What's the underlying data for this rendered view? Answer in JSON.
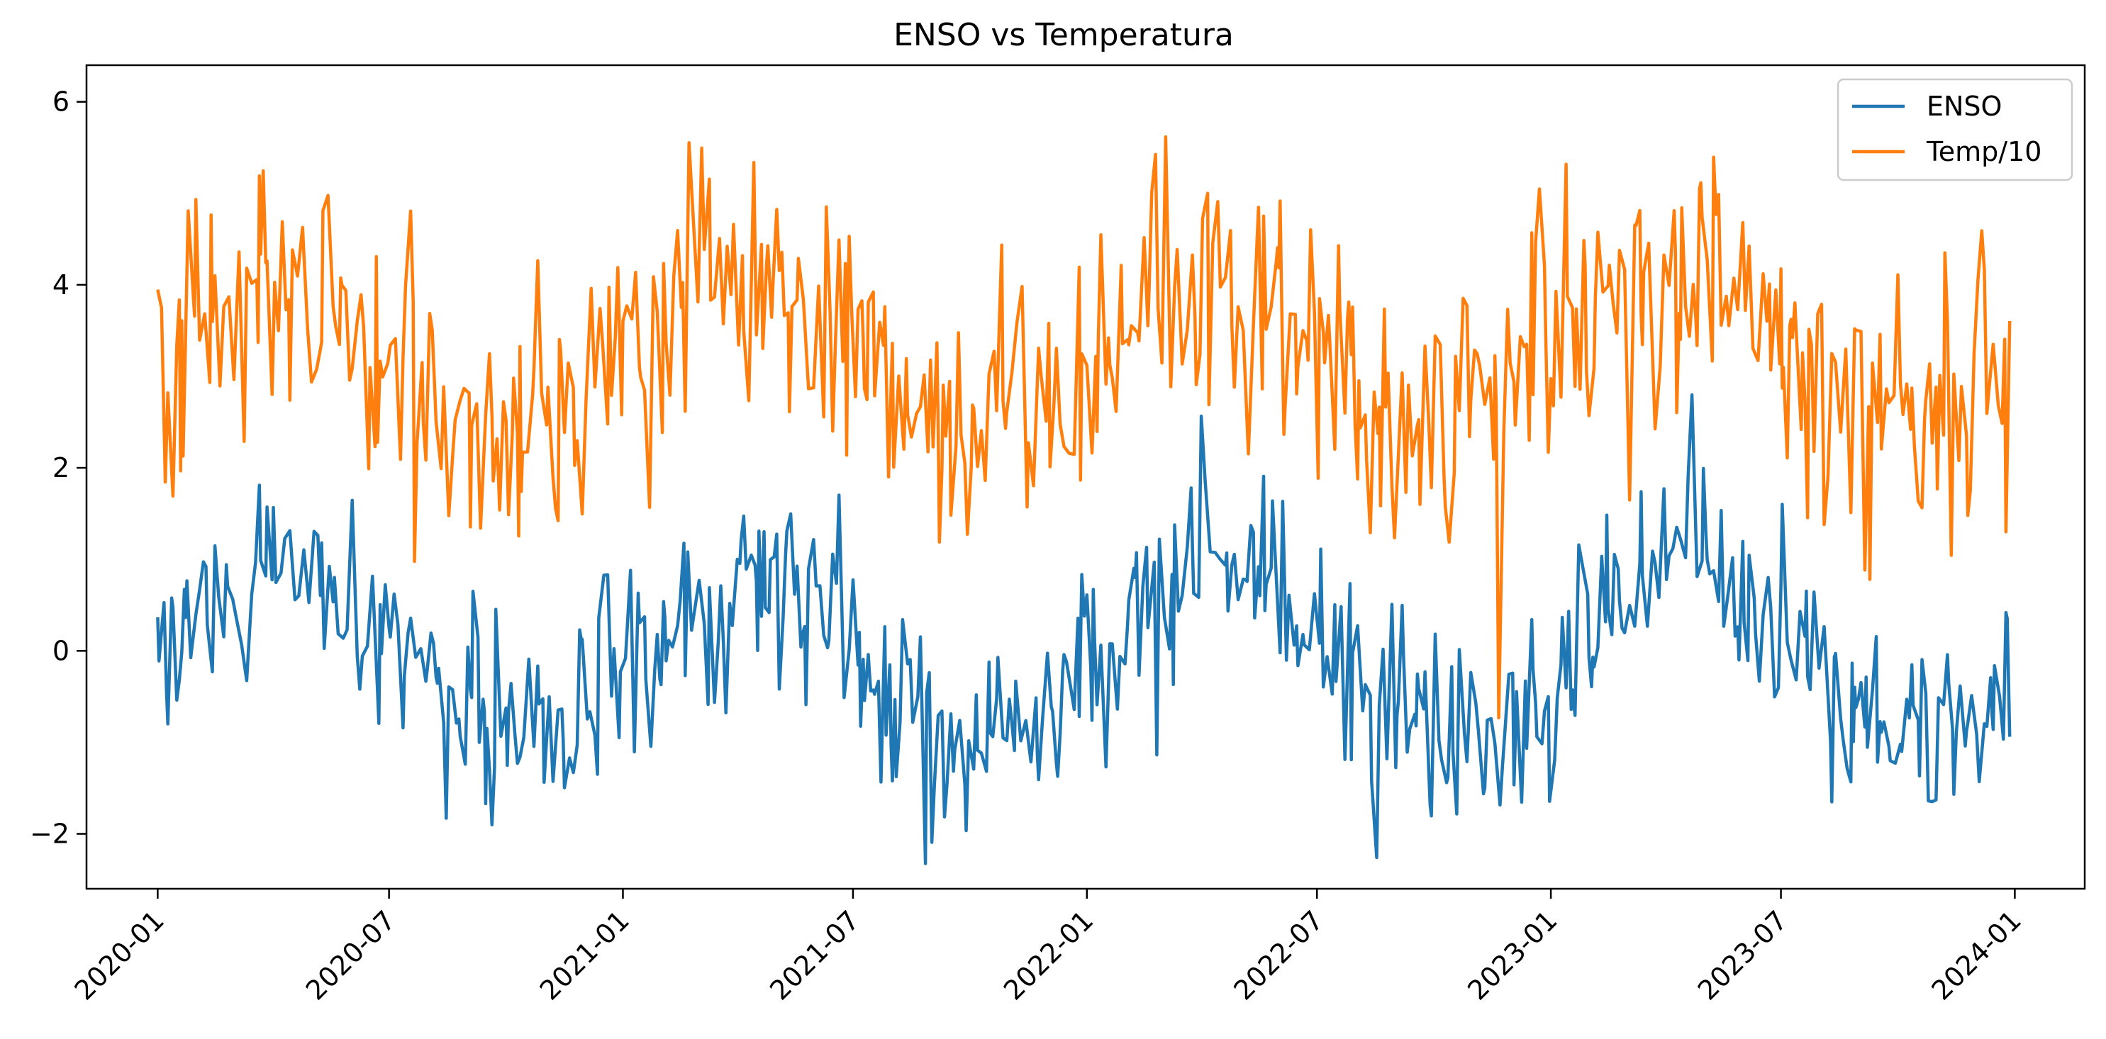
{
  "chart_data": {
    "type": "line",
    "title": "ENSO vs Temperatura",
    "xlabel": "",
    "ylabel": "",
    "x_axis": {
      "type": "date",
      "range": [
        "2019-11-06",
        "2024-02-25"
      ],
      "ticks": [
        "2020-01",
        "2020-07",
        "2021-01",
        "2021-07",
        "2022-01",
        "2022-07",
        "2023-01",
        "2023-07",
        "2024-01"
      ]
    },
    "y_axis": {
      "range": [
        -2.6,
        6.4
      ],
      "ticks": [
        -2,
        0,
        2,
        4,
        6
      ],
      "tick_labels": [
        "−2",
        "0",
        "2",
        "4",
        "6"
      ]
    },
    "grid": false,
    "legend": {
      "position": "top-right"
    },
    "x_start": "2020-01-01",
    "x_end": "2023-12-28",
    "sampling": "approximately every 3 days, monthly anchor values shown below",
    "series": [
      {
        "name": "ENSO",
        "color": "#1f77b4",
        "x": [
          "2020-01",
          "2020-02",
          "2020-03",
          "2020-04",
          "2020-05",
          "2020-06",
          "2020-07",
          "2020-08",
          "2020-09",
          "2020-10",
          "2020-11",
          "2020-12",
          "2021-01",
          "2021-02",
          "2021-03",
          "2021-04",
          "2021-05",
          "2021-06",
          "2021-07",
          "2021-08",
          "2021-09",
          "2021-10",
          "2021-11",
          "2021-12",
          "2022-01",
          "2022-02",
          "2022-03",
          "2022-04",
          "2022-05",
          "2022-06",
          "2022-07",
          "2022-08",
          "2022-09",
          "2022-10",
          "2022-11",
          "2022-12",
          "2023-01",
          "2023-02",
          "2023-03",
          "2023-04",
          "2023-05",
          "2023-06",
          "2023-07",
          "2023-08",
          "2023-09",
          "2023-10",
          "2023-11",
          "2023-12"
        ],
        "values": [
          0.1,
          0.5,
          0.9,
          1.0,
          0.8,
          0.3,
          -0.2,
          -0.5,
          -0.8,
          -1.0,
          -0.9,
          -0.5,
          -0.1,
          0.5,
          0.9,
          1.0,
          0.8,
          0.3,
          -0.2,
          -0.6,
          -0.9,
          -1.0,
          -0.8,
          -0.4,
          0.0,
          0.4,
          0.8,
          0.9,
          0.8,
          0.4,
          -0.1,
          -0.5,
          -0.8,
          -1.0,
          -0.9,
          -0.5,
          -0.1,
          0.4,
          0.8,
          1.0,
          0.9,
          0.4,
          -0.1,
          -0.6,
          -0.9,
          -1.0,
          -0.8,
          -0.3
        ]
      },
      {
        "name": "Temp/10",
        "color": "#ff7f0e",
        "x": [
          "2020-01",
          "2020-02",
          "2020-03",
          "2020-04",
          "2020-05",
          "2020-06",
          "2020-07",
          "2020-08",
          "2020-09",
          "2020-10",
          "2020-11",
          "2020-12",
          "2021-01",
          "2021-02",
          "2021-03",
          "2021-04",
          "2021-05",
          "2021-06",
          "2021-07",
          "2021-08",
          "2021-09",
          "2021-10",
          "2021-11",
          "2021-12",
          "2022-01",
          "2022-02",
          "2022-03",
          "2022-04",
          "2022-05",
          "2022-06",
          "2022-07",
          "2022-08",
          "2022-09",
          "2022-10",
          "2022-11",
          "2022-12",
          "2023-01",
          "2023-02",
          "2023-03",
          "2023-04",
          "2023-05",
          "2023-06",
          "2023-07",
          "2023-08",
          "2023-09",
          "2023-10",
          "2023-11",
          "2023-12"
        ],
        "values": [
          3.3,
          3.7,
          4.1,
          4.1,
          3.9,
          3.4,
          3.0,
          2.8,
          2.5,
          2.4,
          2.6,
          3.0,
          3.4,
          3.9,
          4.1,
          4.2,
          3.8,
          3.4,
          3.0,
          2.7,
          2.5,
          2.4,
          2.5,
          3.0,
          3.5,
          3.9,
          4.1,
          4.1,
          3.9,
          3.5,
          3.0,
          2.7,
          2.5,
          2.4,
          2.6,
          3.1,
          3.5,
          3.9,
          4.1,
          4.1,
          3.8,
          3.4,
          3.0,
          2.7,
          2.5,
          2.5,
          2.6,
          3.1
        ]
      }
    ]
  }
}
